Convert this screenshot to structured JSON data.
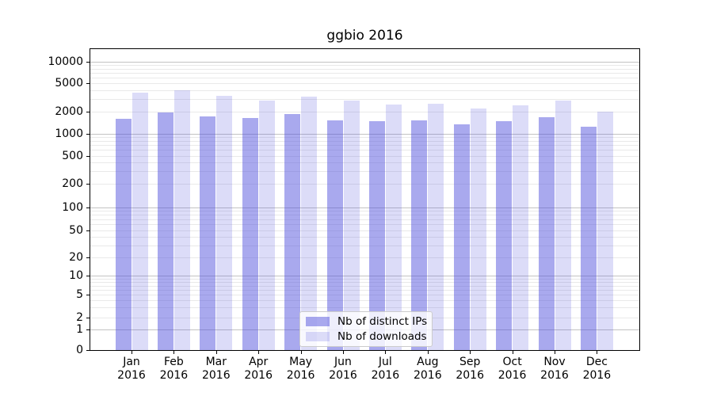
{
  "title": "ggbio 2016",
  "chart_data": {
    "type": "bar",
    "title": "ggbio 2016",
    "categories": [
      "Jan 2016",
      "Feb 2016",
      "Mar 2016",
      "Apr 2016",
      "May 2016",
      "Jun 2016",
      "Jul 2016",
      "Aug 2016",
      "Sep 2016",
      "Oct 2016",
      "Nov 2016",
      "Dec 2016"
    ],
    "series": [
      {
        "name": "Nb of distinct IPs",
        "color": "#aaaaee",
        "values": [
          1600,
          1950,
          1750,
          1650,
          1850,
          1550,
          1500,
          1550,
          1350,
          1500,
          1700,
          1250
        ]
      },
      {
        "name": "Nb of downloads",
        "color": "#dcdcf8",
        "values": [
          3700,
          4000,
          3350,
          2850,
          3300,
          2900,
          2550,
          2600,
          2250,
          2500,
          2850,
          2000
        ]
      }
    ],
    "xlabel": "",
    "ylabel": "",
    "yscale": "symlog",
    "y_ticks": [
      0,
      1,
      2,
      5,
      10,
      20,
      50,
      100,
      200,
      500,
      1000,
      2000,
      5000,
      10000
    ],
    "ylim": [
      0,
      14000
    ],
    "grid": "horizontal, major and minor",
    "legend_position": "lower center, inside plot"
  },
  "legend": {
    "items": [
      {
        "label": "Nb of distinct IPs"
      },
      {
        "label": "Nb of downloads"
      }
    ]
  },
  "colors": {
    "bar_distinct_ips": "#aaaaee",
    "bar_downloads": "#dcdcf8",
    "bar_fill_base_rgba": "rgba(80,80,220,0.49)",
    "bar_fill_light_rgba": "rgba(80,80,220,0.20)",
    "grid_major": "#c3c3c3",
    "grid_minor": "#e9e9e9",
    "axis": "#000000",
    "background": "#ffffff"
  }
}
